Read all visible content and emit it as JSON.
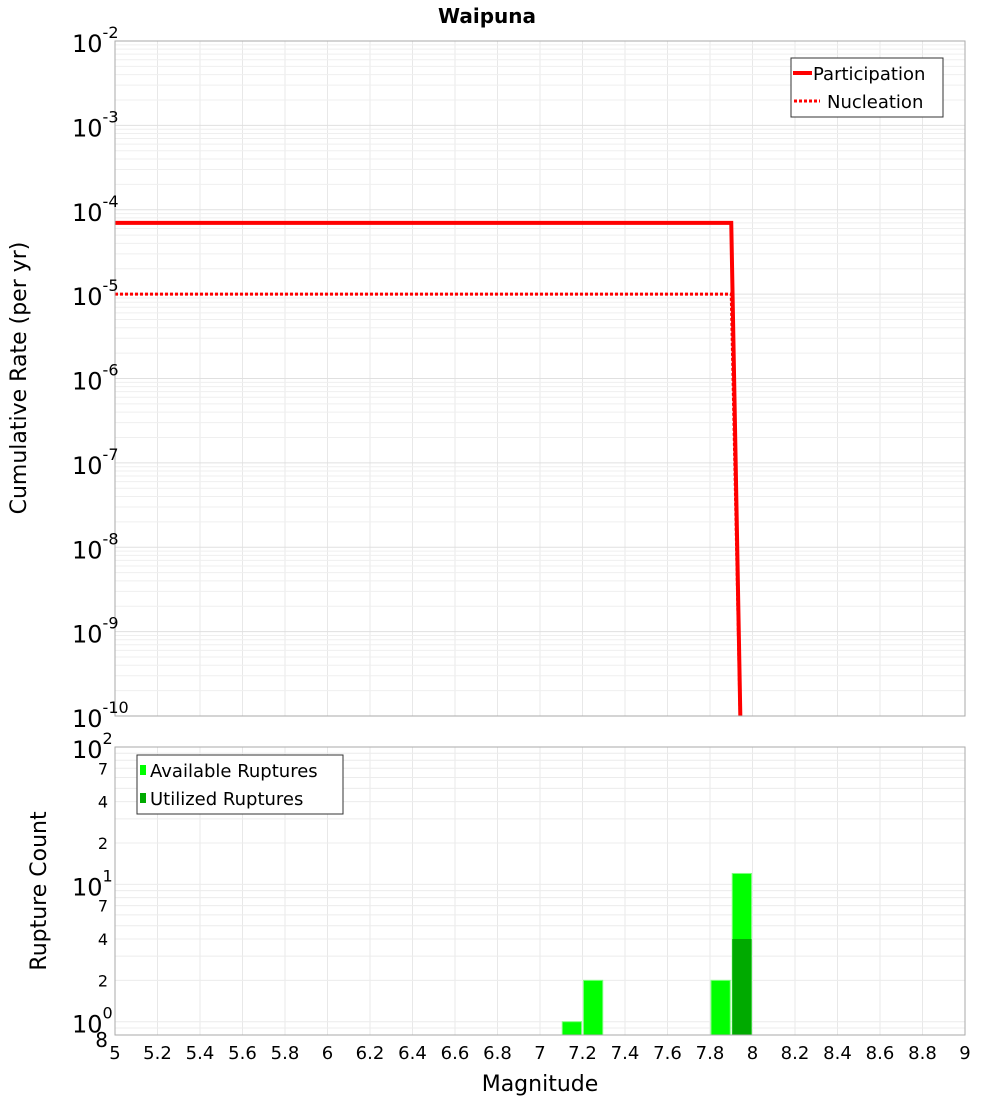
{
  "chart_data": [
    {
      "type": "line",
      "title": "Waipuna",
      "xlabel": "Magnitude",
      "ylabel": "Cumulative Rate (per yr)",
      "xlim": [
        5,
        9
      ],
      "ylim": [
        1e-10,
        0.01
      ],
      "yscale": "log",
      "grid": true,
      "legend_position": "top-right",
      "y_tick_exponents": [
        "-2",
        "-3",
        "-4",
        "-5",
        "-6",
        "-7",
        "-8",
        "-9",
        "-10"
      ],
      "y_tick_base": "10",
      "series": [
        {
          "name": "Participation",
          "style": "solid",
          "color": "#ff0000",
          "x": [
            5.0,
            7.9,
            7.95
          ],
          "y": [
            7e-05,
            7e-05,
            1e-11
          ]
        },
        {
          "name": "Nucleation",
          "style": "dotted",
          "color": "#ff0000",
          "x": [
            5.0,
            7.9,
            7.95
          ],
          "y": [
            1e-05,
            1e-05,
            1e-11
          ]
        }
      ]
    },
    {
      "type": "bar",
      "xlabel": "Magnitude",
      "ylabel": "Rupture Count",
      "xlim": [
        5,
        9
      ],
      "ylim": [
        0.8,
        100
      ],
      "yscale": "log",
      "grid": true,
      "legend_position": "top-left",
      "x_ticks": [
        "5",
        "5.2",
        "5.4",
        "5.6",
        "5.8",
        "6",
        "6.2",
        "6.4",
        "6.6",
        "6.8",
        "7",
        "7.2",
        "7.4",
        "7.6",
        "7.8",
        "8",
        "8.2",
        "8.4",
        "8.6",
        "8.8",
        "9"
      ],
      "y_major_ticks": [
        {
          "base": "10",
          "exp": "2",
          "value": 100
        },
        {
          "base": "10",
          "exp": "1",
          "value": 10
        },
        {
          "base": "10",
          "exp": "0",
          "value": 1
        }
      ],
      "y_minor_ticks": [
        {
          "label": "7",
          "value": 70
        },
        {
          "label": "4",
          "value": 40
        },
        {
          "label": "2",
          "value": 20
        },
        {
          "label": "7",
          "value": 7
        },
        {
          "label": "4",
          "value": 4
        },
        {
          "label": "2",
          "value": 2
        },
        {
          "label": "8",
          "value": 0.8
        }
      ],
      "bin_width": 0.1,
      "series": [
        {
          "name": "Available Ruptures",
          "color": "#00ff00",
          "x": [
            7.15,
            7.25,
            7.85,
            7.95
          ],
          "values": [
            1,
            2,
            2,
            12
          ]
        },
        {
          "name": "Utilized Ruptures",
          "color": "#00aa00",
          "x": [
            7.95
          ],
          "values": [
            4
          ]
        }
      ]
    }
  ]
}
